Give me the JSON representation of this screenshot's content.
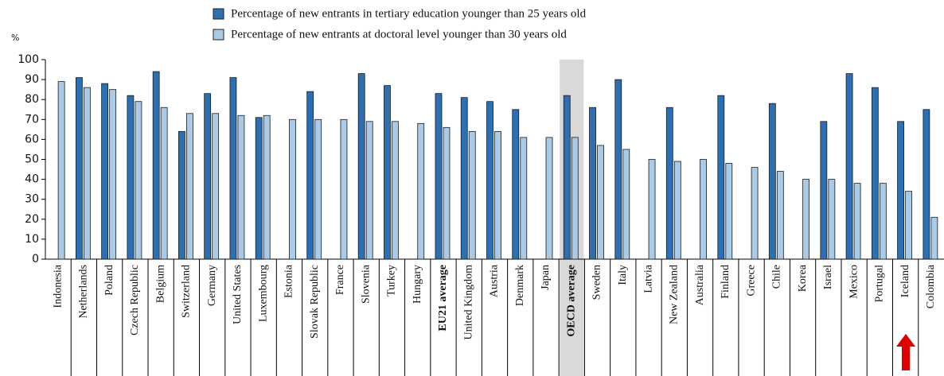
{
  "chart_data": {
    "type": "bar",
    "y_label": "%",
    "categories": [
      "Indonesia",
      "Netherlands",
      "Poland",
      "Czech Republic",
      "Belgium",
      "Switzerland",
      "Germany",
      "United States",
      "Luxembourg",
      "Estonia",
      "Slovak Republic",
      "France",
      "Slovenia",
      "Turkey",
      "Hungary",
      "EU21 average",
      "United Kingdom",
      "Austria",
      "Denmark",
      "Japan",
      "OECD average",
      "Sweden",
      "Italy",
      "Latvia",
      "New Zealand",
      "Australia",
      "Finland",
      "Greece",
      "Chile",
      "Korea",
      "Israel",
      "Mexico",
      "Portugal",
      "Iceland",
      "Colombia"
    ],
    "series": [
      {
        "name": "Percentage of new entrants in tertiary education younger than 25 years old",
        "color": "#2c6fb3",
        "values": [
          null,
          91,
          88,
          82,
          94,
          64,
          83,
          91,
          71,
          null,
          84,
          null,
          93,
          87,
          null,
          83,
          81,
          79,
          75,
          null,
          82,
          76,
          90,
          null,
          76,
          null,
          82,
          null,
          78,
          null,
          69,
          93,
          86,
          69,
          75
        ]
      },
      {
        "name": "Percentage of new entrants at doctoral level younger than 30 years old",
        "color": "#a9cbe8",
        "values": [
          89,
          86,
          85,
          79,
          76,
          73,
          73,
          72,
          72,
          70,
          70,
          70,
          69,
          69,
          68,
          66,
          64,
          64,
          61,
          61,
          61,
          57,
          55,
          50,
          49,
          50,
          48,
          46,
          44,
          40,
          40,
          38,
          38,
          34,
          21
        ]
      }
    ],
    "ylim": [
      0,
      100
    ],
    "yticks": [
      0,
      10,
      20,
      30,
      40,
      50,
      60,
      70,
      80,
      90,
      100
    ],
    "grid": false,
    "highlight": [
      "OECD average"
    ],
    "bold_categories": [
      "EU21 average",
      "OECD average"
    ]
  }
}
